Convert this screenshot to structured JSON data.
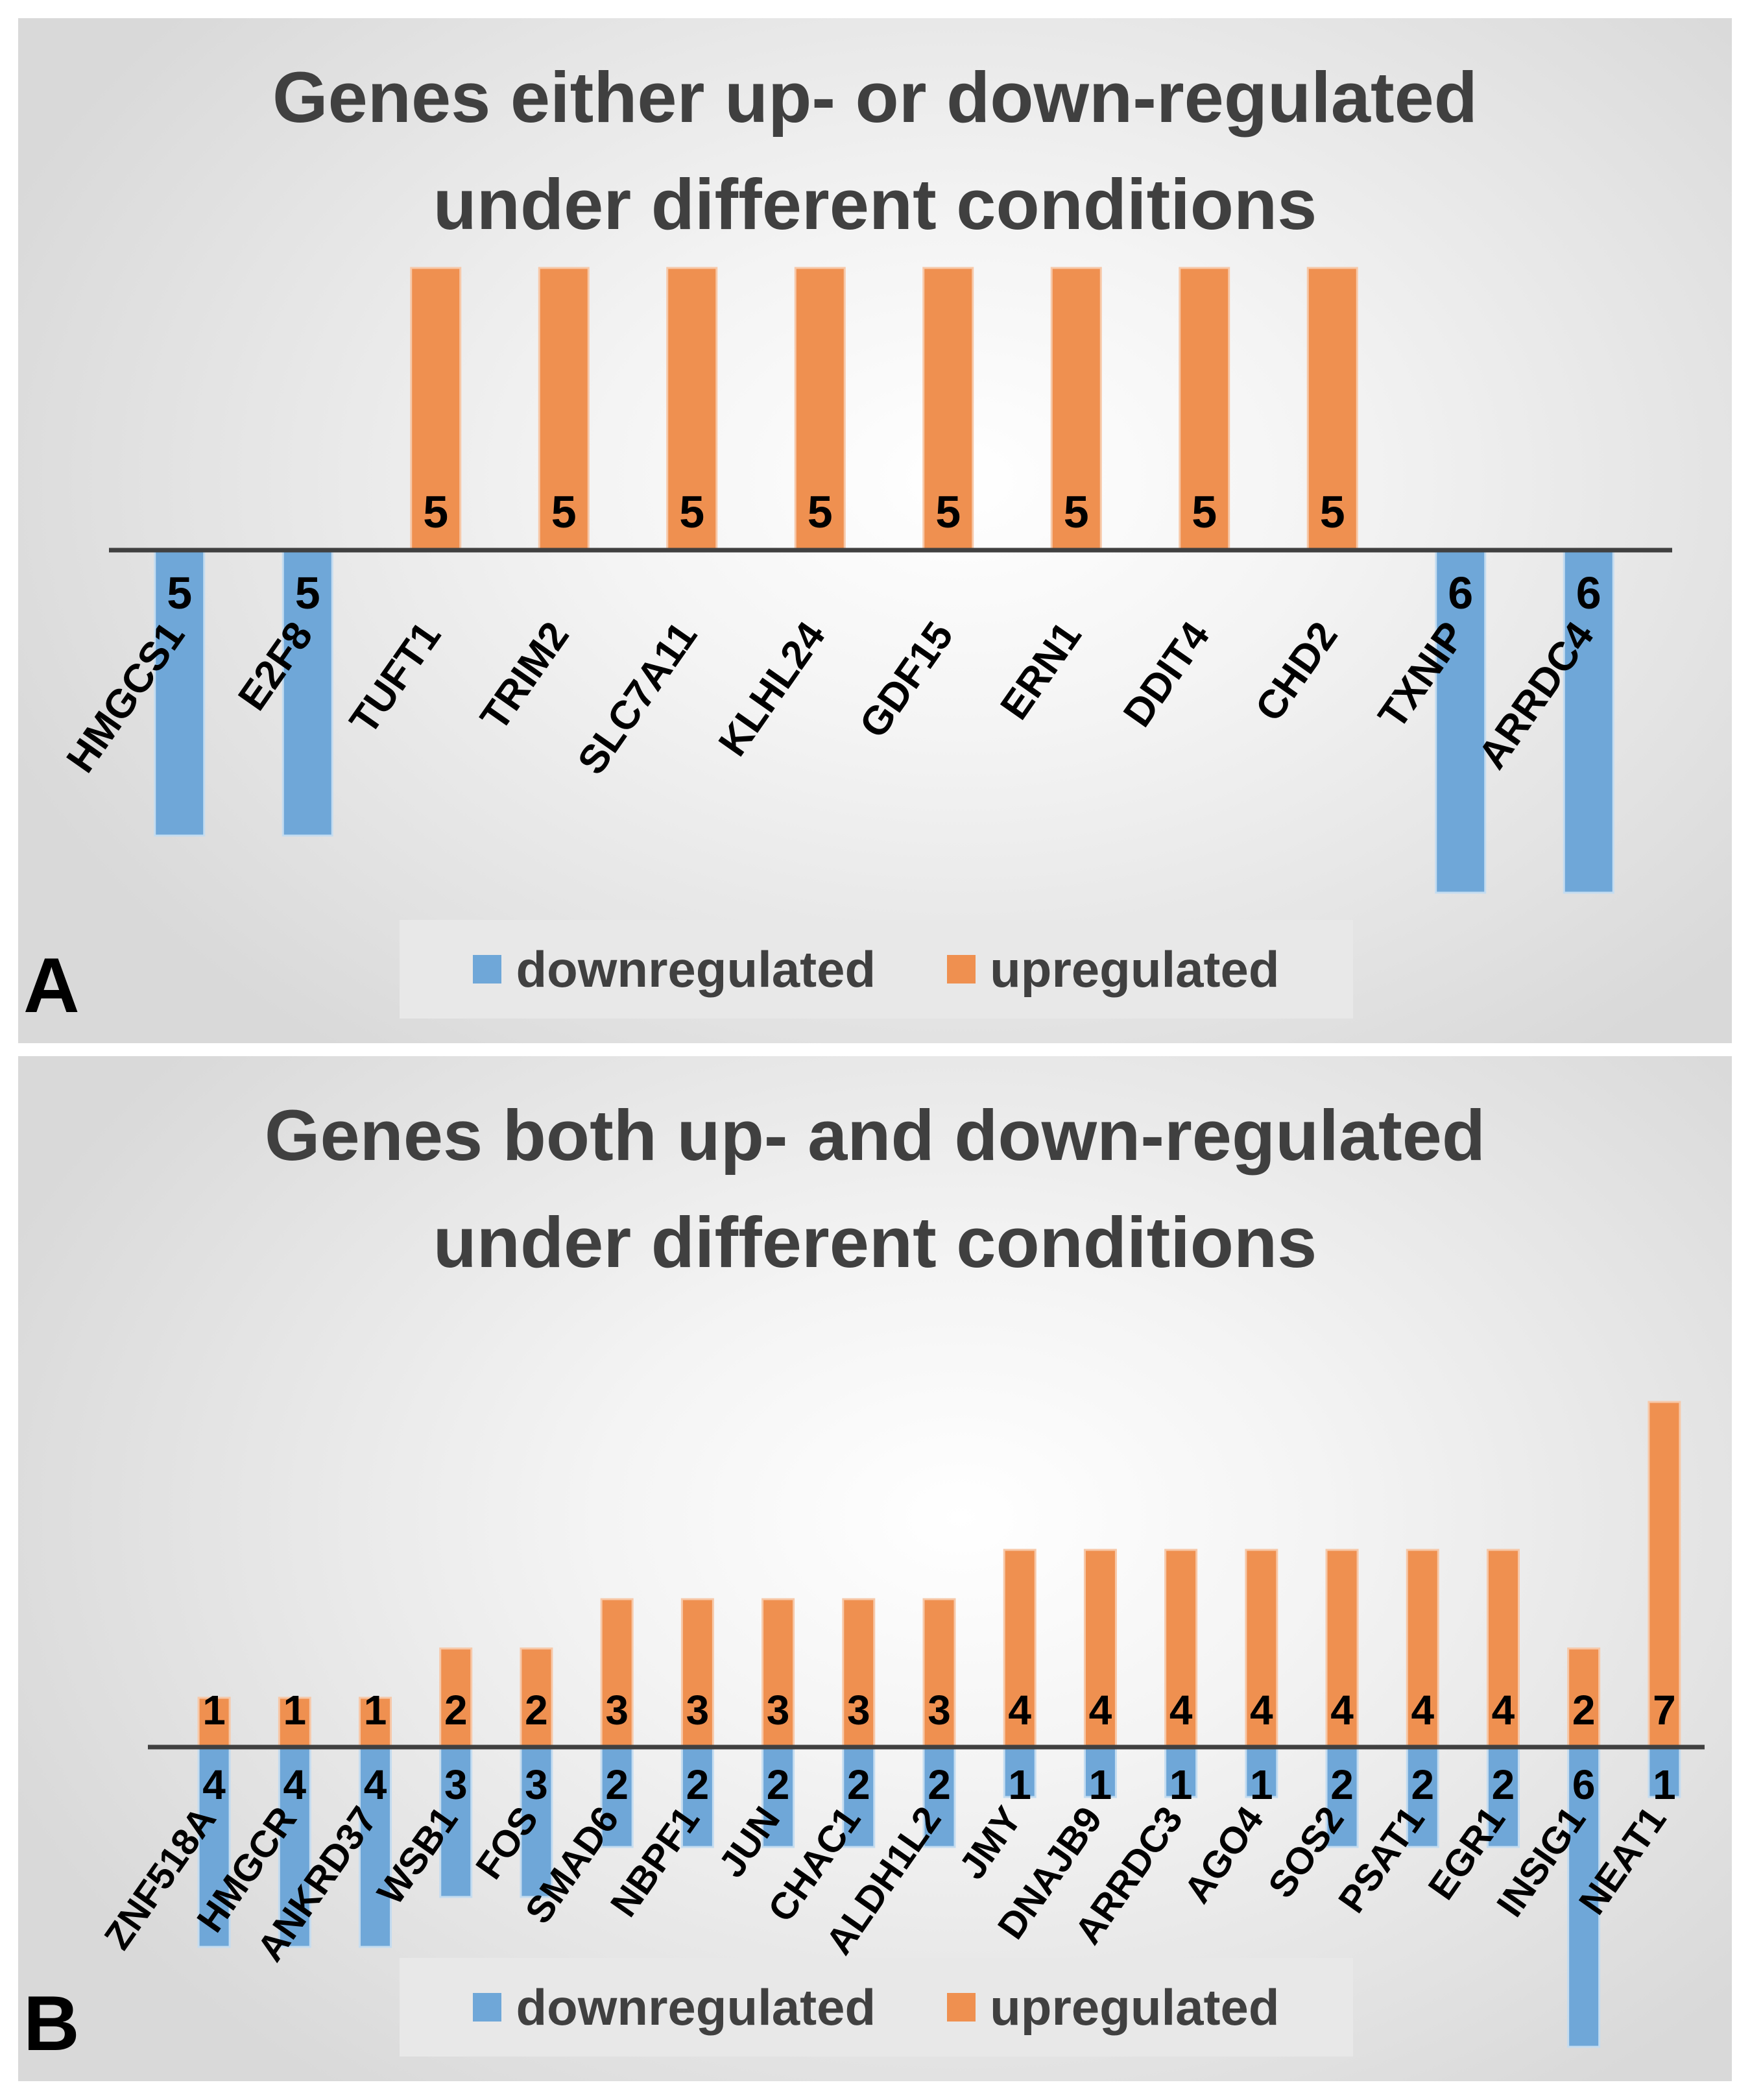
{
  "colors": {
    "down": "#6fa7d8",
    "up": "#ef9050"
  },
  "chart_data": [
    {
      "type": "bar",
      "panel_label": "A",
      "title_lines": [
        "Genes either up- or down-regulated",
        "under different conditions"
      ],
      "categories": [
        "HMGCS1",
        "E2F8",
        "TUFT1",
        "TRIM2",
        "SLC7A11",
        "KLHL24",
        "GDF15",
        "ERN1",
        "DDIT4",
        "CHD2",
        "TXNIP",
        "ARRDC4"
      ],
      "series": [
        {
          "name": "downregulated",
          "values": [
            5,
            5,
            null,
            null,
            null,
            null,
            null,
            null,
            null,
            null,
            6,
            6
          ]
        },
        {
          "name": "upregulated",
          "values": [
            null,
            null,
            5,
            5,
            5,
            5,
            5,
            5,
            5,
            5,
            null,
            null
          ]
        }
      ],
      "legend": [
        "downregulated",
        "upregulated"
      ],
      "legend_position": "bottom"
    },
    {
      "type": "bar",
      "panel_label": "B",
      "title_lines": [
        "Genes both up- and down-regulated",
        "under different conditions"
      ],
      "categories": [
        "ZNF518A",
        "HMGCR",
        "ANKRD37",
        "WSB1",
        "FOS",
        "SMAD6",
        "NBPF1",
        "JUN",
        "CHAC1",
        "ALDH1L2",
        "JMY",
        "DNAJB9",
        "ARRDC3",
        "AGO4",
        "SOS2",
        "PSAT1",
        "EGR1",
        "INSIG1",
        "NEAT1"
      ],
      "series": [
        {
          "name": "downregulated",
          "values": [
            4,
            4,
            4,
            3,
            3,
            2,
            2,
            2,
            2,
            2,
            1,
            1,
            1,
            1,
            2,
            2,
            2,
            6,
            1
          ]
        },
        {
          "name": "upregulated",
          "values": [
            1,
            1,
            1,
            2,
            2,
            3,
            3,
            3,
            3,
            3,
            4,
            4,
            4,
            4,
            4,
            4,
            4,
            2,
            7
          ]
        }
      ],
      "legend": [
        "downregulated",
        "upregulated"
      ],
      "legend_position": "bottom"
    }
  ]
}
